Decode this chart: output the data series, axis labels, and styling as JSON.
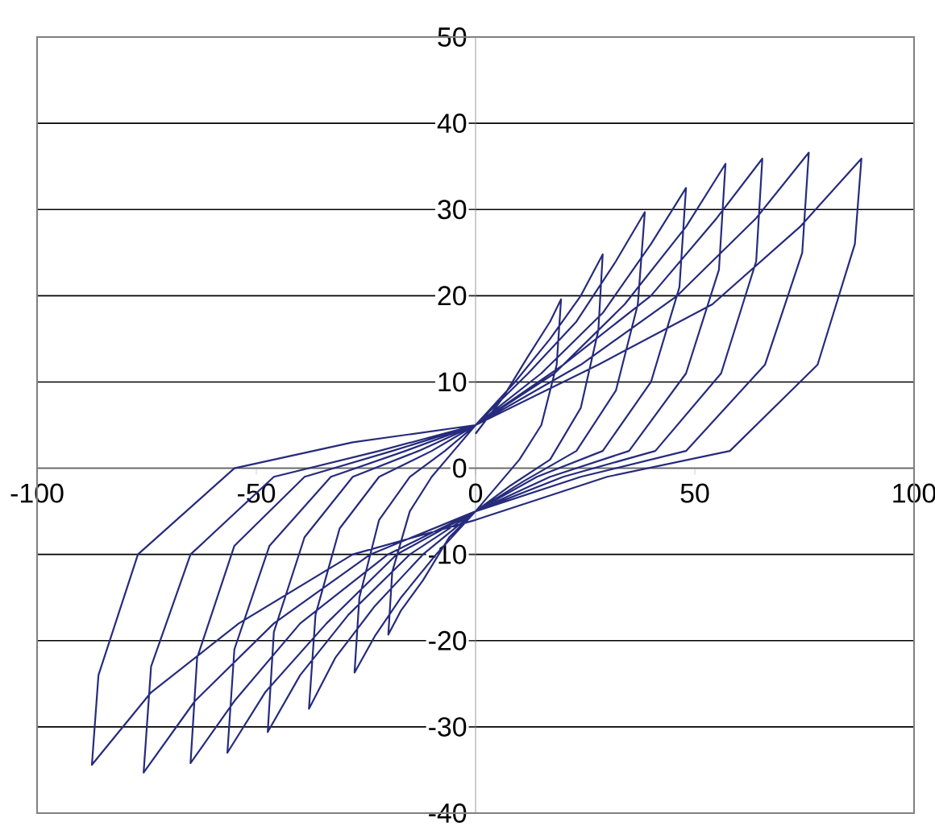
{
  "chart_data": {
    "type": "line",
    "marker": "none",
    "line_style": "solid",
    "grid": "y",
    "xlim": [
      -100,
      100
    ],
    "xticks": [
      -100,
      -50,
      0,
      50,
      100
    ],
    "ylim": [
      -40,
      50
    ],
    "yticks": [
      -40,
      -30,
      -20,
      -10,
      0,
      10,
      20,
      30,
      40,
      50
    ],
    "series": [
      {
        "color": "#262b7c",
        "x": [
          0,
          6,
          12,
          17,
          19.5,
          18.5,
          15,
          10,
          5,
          0,
          -6,
          -12,
          -17,
          -19.9,
          -19,
          -15,
          -10,
          -5,
          0,
          9,
          17,
          24,
          29,
          28,
          24,
          17,
          8,
          0,
          -9,
          -17,
          -23,
          -27.6,
          -26.5,
          -22,
          -15,
          -7,
          0,
          12,
          23,
          32,
          38.6,
          37,
          32,
          23,
          11,
          0,
          -12,
          -23,
          -32,
          -38,
          -36.5,
          -31,
          -22,
          -10,
          0,
          15,
          29,
          40,
          48,
          46.5,
          40,
          29,
          14,
          0,
          -15,
          -29,
          -40,
          -47.4,
          -46,
          -39,
          -28,
          -13,
          0,
          18,
          34,
          48,
          57,
          55.5,
          48,
          35,
          17,
          0,
          -18,
          -34,
          -48,
          -56.6,
          -55,
          -47,
          -33,
          -16,
          0,
          20,
          40,
          55,
          65.4,
          64,
          56,
          41,
          20,
          0,
          -20,
          -40,
          -55,
          -65,
          -63.5,
          -55,
          -39,
          -19,
          0,
          24,
          46,
          64,
          76,
          74.5,
          66,
          48,
          24,
          0,
          -24,
          -46,
          -64,
          -75.7,
          -74,
          -65,
          -46,
          -22,
          0,
          28,
          54,
          74,
          88,
          86.5,
          78,
          58,
          30,
          0,
          -28,
          -54,
          -74,
          -87.5,
          -86,
          -77,
          -55,
          -28,
          0
        ],
        "values": [
          4,
          8,
          13,
          17,
          19.6,
          12,
          5,
          1,
          -2,
          -5,
          -8,
          -13,
          -16.5,
          -19.3,
          -12,
          -5,
          -1,
          2,
          5,
          10,
          15,
          20,
          24.8,
          16,
          7,
          1,
          -2,
          -5,
          -10,
          -15,
          -19.5,
          -23.7,
          -15,
          -6,
          -1,
          2,
          5,
          11,
          17,
          24,
          29.7,
          19,
          9,
          2,
          -1.5,
          -5,
          -10,
          -16,
          -22,
          -27.9,
          -17,
          -7,
          -1,
          2,
          5,
          11,
          18,
          26,
          32.5,
          21,
          10,
          2,
          -1,
          -5,
          -10,
          -17,
          -24,
          -30.6,
          -19,
          -8,
          -1,
          2,
          5,
          11,
          19,
          28,
          35.3,
          23,
          11,
          2,
          -1,
          -5,
          -10,
          -18,
          -26,
          -33,
          -21,
          -9,
          -1,
          2,
          5,
          12,
          20,
          29,
          35.9,
          24,
          11,
          2,
          -1,
          -5,
          -10,
          -18,
          -27,
          -34.2,
          -22,
          -9,
          -1,
          2,
          5,
          12,
          20,
          29,
          36.6,
          25,
          12,
          2,
          -1,
          -5,
          -10,
          -18,
          -27,
          -35.3,
          -23,
          -10,
          -1,
          2,
          5,
          12,
          19,
          28,
          35.9,
          26,
          12,
          2,
          -1,
          -6,
          -10,
          -18,
          -26,
          -34.4,
          -24,
          -10,
          0,
          3,
          5
        ]
      }
    ]
  }
}
